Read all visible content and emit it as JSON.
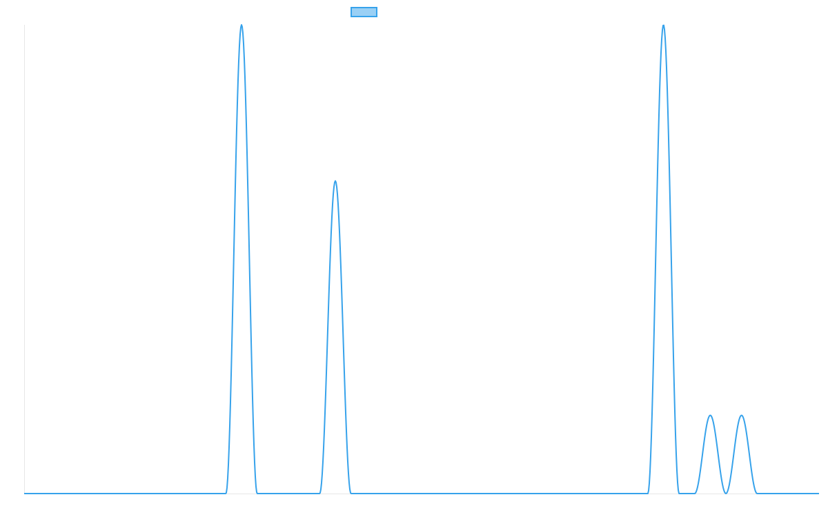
{
  "chart_data": {
    "type": "line",
    "title": "",
    "xlabel": "",
    "ylabel": "",
    "grid": false,
    "legend": "top",
    "series": [
      {
        "name": "",
        "color": "#36a2eb",
        "fill": "#9ad0f5",
        "peaks": [
          {
            "center": 0.2735,
            "halfwidth": 0.0197,
            "height": 1.0
          },
          {
            "center": 0.3915,
            "halfwidth": 0.0197,
            "height": 0.667
          },
          {
            "center": 0.8043,
            "halfwidth": 0.0197,
            "height": 1.0
          },
          {
            "center": 0.8632,
            "halfwidth": 0.0197,
            "height": 0.167
          },
          {
            "center": 0.9025,
            "halfwidth": 0.0197,
            "height": 0.167
          }
        ]
      }
    ],
    "xlim": [
      0,
      1
    ],
    "ylim": [
      0,
      1
    ]
  }
}
